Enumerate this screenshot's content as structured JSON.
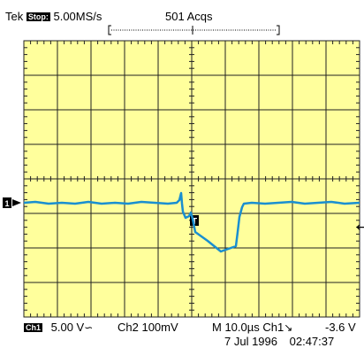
{
  "header": {
    "brand": "Tek",
    "mode_badge": "Stop:",
    "sample_rate": "5.00MS/s",
    "acquisitions": "501 Acqs"
  },
  "markers": {
    "channel_ground": "1",
    "trigger_position": "T",
    "trigger_level_arrow": "←"
  },
  "footer": {
    "ch1_badge": "Ch1",
    "ch1_scale": "5.00 V",
    "ch1_coupling_symbol": "∽",
    "ch2_scale": "Ch2 100mV",
    "timebase": "M 10.0µs Ch1",
    "trigger_slope_symbol": "↘",
    "trigger_level": "-3.6 V",
    "date": "7 Jul 1996",
    "time": "02:47:37"
  },
  "colors": {
    "grid_background": "#ffff9c",
    "grid_lines": "#222222",
    "trace": "#1a8fd0"
  }
}
